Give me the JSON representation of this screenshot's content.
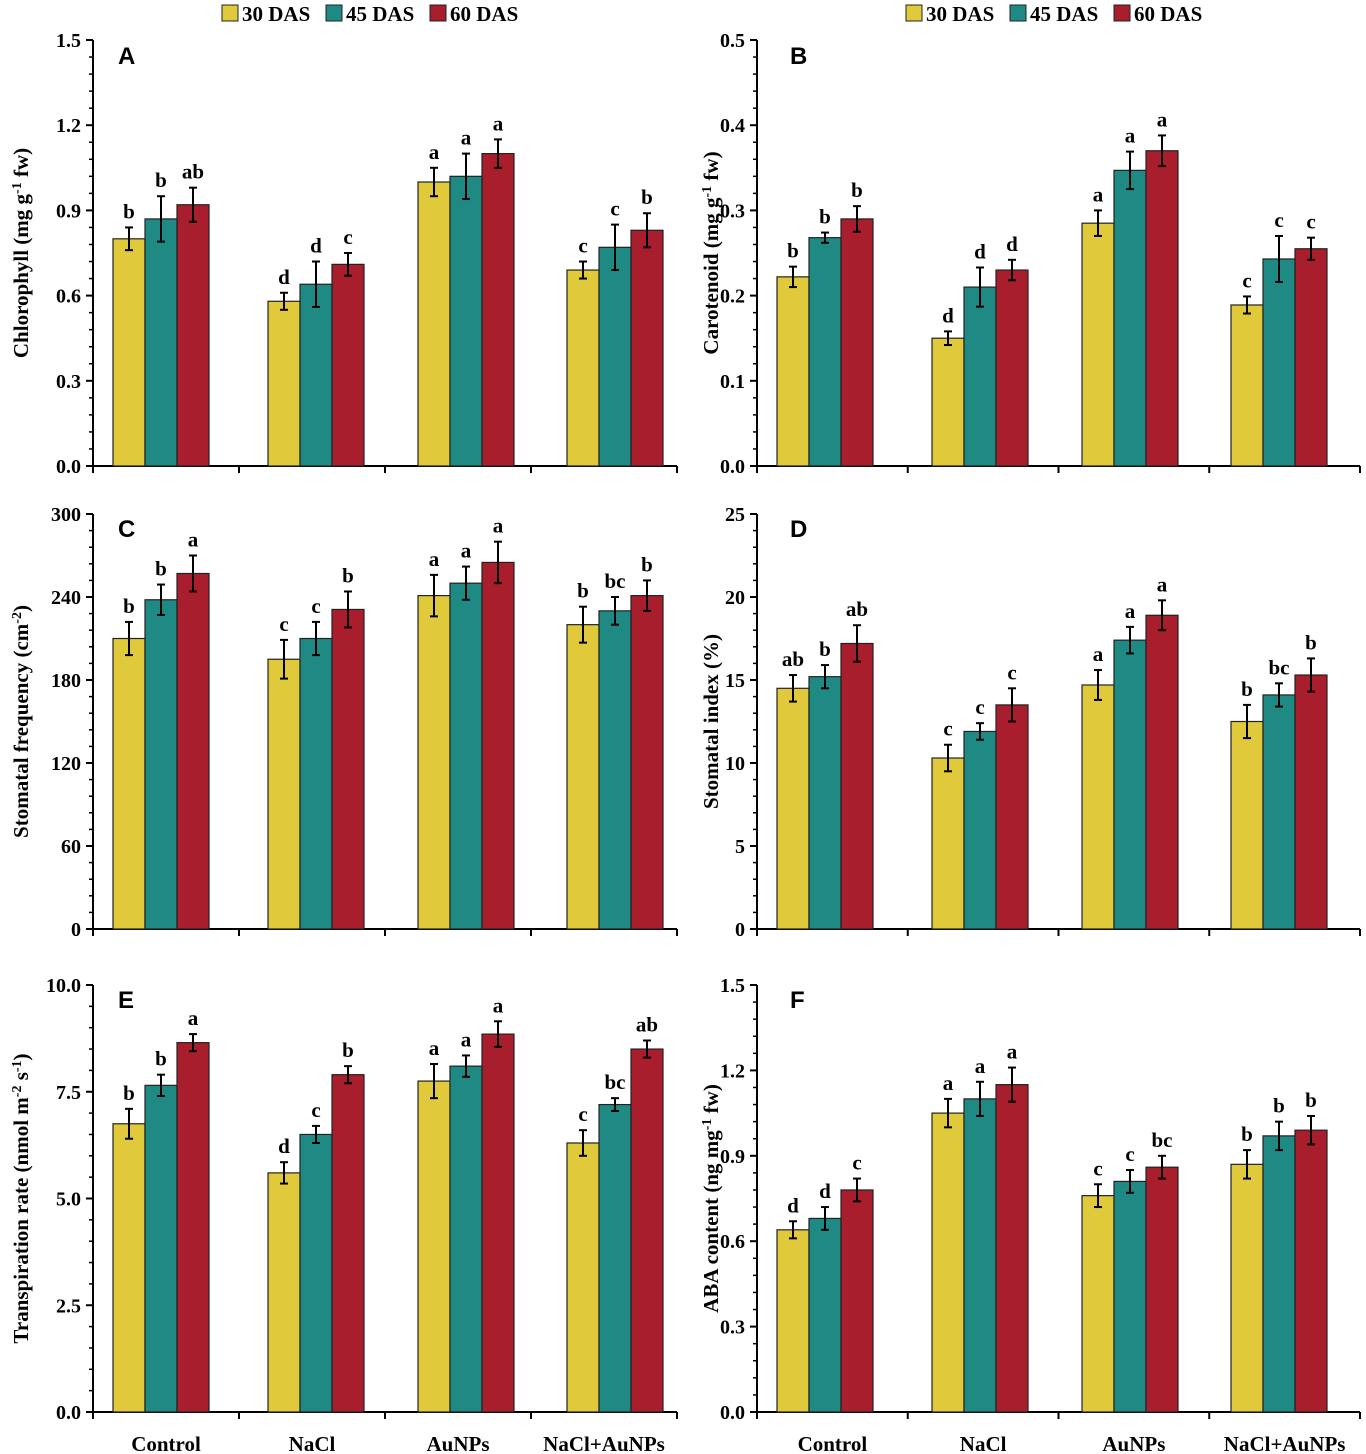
{
  "legend": [
    {
      "label": "30 DAS",
      "color": "#e0c93a"
    },
    {
      "label": "45 DAS",
      "color": "#1f8a84"
    },
    {
      "label": "60 DAS",
      "color": "#a81e2c"
    }
  ],
  "chart_data": [
    {
      "type": "bar",
      "panel": "A",
      "ylabel_parts": [
        "Chlorophyll (mg g",
        "-1",
        " fw)"
      ],
      "ylim": [
        0,
        1.5
      ],
      "yticks": [
        "0.0",
        "0.3",
        "0.6",
        "0.9",
        "1.2",
        "1.5"
      ],
      "categories": [
        "Control",
        "NaCl",
        "AuNPs",
        "NaCl+AuNPs"
      ],
      "series": [
        {
          "name": "30 DAS",
          "values": [
            0.8,
            0.58,
            1.0,
            0.69
          ],
          "errors": [
            0.04,
            0.03,
            0.05,
            0.03
          ],
          "letters": [
            "b",
            "d",
            "a",
            "c"
          ]
        },
        {
          "name": "45 DAS",
          "values": [
            0.87,
            0.64,
            1.02,
            0.77
          ],
          "errors": [
            0.08,
            0.08,
            0.08,
            0.08
          ],
          "letters": [
            "b",
            "d",
            "a",
            "c"
          ]
        },
        {
          "name": "60 DAS",
          "values": [
            0.92,
            0.71,
            1.1,
            0.83
          ],
          "errors": [
            0.06,
            0.04,
            0.05,
            0.06
          ],
          "letters": [
            "ab",
            "c",
            "a",
            "b"
          ]
        }
      ]
    },
    {
      "type": "bar",
      "panel": "B",
      "ylabel_parts": [
        "Carotenoid (mg g",
        "-1",
        " fw)"
      ],
      "ylim": [
        0,
        0.5
      ],
      "yticks": [
        "0.0",
        "0.1",
        "0.2",
        "0.3",
        "0.4",
        "0.5"
      ],
      "categories": [
        "Control",
        "NaCl",
        "AuNPs",
        "NaCl+AuNPs"
      ],
      "series": [
        {
          "name": "30 DAS",
          "values": [
            0.222,
            0.15,
            0.285,
            0.189
          ],
          "errors": [
            0.012,
            0.008,
            0.015,
            0.01
          ],
          "letters": [
            "b",
            "d",
            "a",
            "c"
          ]
        },
        {
          "name": "45 DAS",
          "values": [
            0.268,
            0.21,
            0.347,
            0.243
          ],
          "errors": [
            0.006,
            0.023,
            0.022,
            0.027
          ],
          "letters": [
            "b",
            "d",
            "a",
            "c"
          ]
        },
        {
          "name": "60 DAS",
          "values": [
            0.29,
            0.23,
            0.37,
            0.255
          ],
          "errors": [
            0.015,
            0.012,
            0.018,
            0.013
          ],
          "letters": [
            "b",
            "d",
            "a",
            "c"
          ]
        }
      ]
    },
    {
      "type": "bar",
      "panel": "C",
      "ylabel_parts": [
        "Stomatal frequency (cm",
        "-2",
        ")"
      ],
      "ylim": [
        0,
        300
      ],
      "yticks": [
        "0",
        "60",
        "120",
        "180",
        "240",
        "300"
      ],
      "categories": [
        "Control",
        "NaCl",
        "AuNPs",
        "NaCl+AuNPs"
      ],
      "series": [
        {
          "name": "30 DAS",
          "values": [
            210,
            195,
            241,
            220
          ],
          "errors": [
            12,
            14,
            15,
            13
          ],
          "letters": [
            "b",
            "c",
            "a",
            "b"
          ]
        },
        {
          "name": "45 DAS",
          "values": [
            238,
            210,
            250,
            230
          ],
          "errors": [
            11,
            12,
            12,
            10
          ],
          "letters": [
            "b",
            "c",
            "a",
            "bc"
          ]
        },
        {
          "name": "60 DAS",
          "values": [
            257,
            231,
            265,
            241
          ],
          "errors": [
            13,
            13,
            15,
            11
          ],
          "letters": [
            "a",
            "b",
            "a",
            "b"
          ]
        }
      ]
    },
    {
      "type": "bar",
      "panel": "D",
      "ylabel_parts": [
        "Stomatal index (%)"
      ],
      "ylim": [
        0,
        25
      ],
      "yticks": [
        "0",
        "5",
        "10",
        "15",
        "20",
        "25"
      ],
      "categories": [
        "Control",
        "NaCl",
        "AuNPs",
        "NaCl+AuNPs"
      ],
      "series": [
        {
          "name": "30 DAS",
          "values": [
            14.5,
            10.3,
            14.7,
            12.5
          ],
          "errors": [
            0.8,
            0.8,
            0.9,
            1.0
          ],
          "letters": [
            "ab",
            "c",
            "a",
            "b"
          ]
        },
        {
          "name": "45 DAS",
          "values": [
            15.2,
            11.9,
            17.4,
            14.1
          ],
          "errors": [
            0.7,
            0.5,
            0.8,
            0.7
          ],
          "letters": [
            "b",
            "c",
            "a",
            "bc"
          ]
        },
        {
          "name": "60 DAS",
          "values": [
            17.2,
            13.5,
            18.9,
            15.3
          ],
          "errors": [
            1.1,
            1.0,
            0.9,
            1.0
          ],
          "letters": [
            "ab",
            "c",
            "a",
            "b"
          ]
        }
      ]
    },
    {
      "type": "bar",
      "panel": "E",
      "ylabel_parts": [
        "Transpiration rate (nmol m",
        "-2",
        " s",
        "-1",
        ")"
      ],
      "ylim": [
        0,
        10
      ],
      "yticks": [
        "0.0",
        "2.5",
        "5.0",
        "7.5",
        "10.0"
      ],
      "categories": [
        "Control",
        "NaCl",
        "AuNPs",
        "NaCl+AuNPs"
      ],
      "series": [
        {
          "name": "30 DAS",
          "values": [
            6.75,
            5.6,
            7.75,
            6.3
          ],
          "errors": [
            0.35,
            0.25,
            0.4,
            0.3
          ],
          "letters": [
            "b",
            "d",
            "a",
            "c"
          ]
        },
        {
          "name": "45 DAS",
          "values": [
            7.65,
            6.5,
            8.1,
            7.2
          ],
          "errors": [
            0.25,
            0.2,
            0.25,
            0.15
          ],
          "letters": [
            "b",
            "c",
            "a",
            "bc"
          ]
        },
        {
          "name": "60 DAS",
          "values": [
            8.65,
            7.9,
            8.85,
            8.5
          ],
          "errors": [
            0.2,
            0.2,
            0.3,
            0.2
          ],
          "letters": [
            "a",
            "b",
            "a",
            "ab"
          ]
        }
      ]
    },
    {
      "type": "bar",
      "panel": "F",
      "ylabel_parts": [
        "ABA content (ng mg",
        "-1",
        " fw)"
      ],
      "ylim": [
        0,
        1.5
      ],
      "yticks": [
        "0.0",
        "0.3",
        "0.6",
        "0.9",
        "1.2",
        "1.5"
      ],
      "categories": [
        "Control",
        "NaCl",
        "AuNPs",
        "NaCl+AuNPs"
      ],
      "series": [
        {
          "name": "30 DAS",
          "values": [
            0.64,
            1.05,
            0.76,
            0.87
          ],
          "errors": [
            0.03,
            0.05,
            0.04,
            0.05
          ],
          "letters": [
            "d",
            "a",
            "c",
            "b"
          ]
        },
        {
          "name": "45 DAS",
          "values": [
            0.68,
            1.1,
            0.81,
            0.97
          ],
          "errors": [
            0.04,
            0.06,
            0.04,
            0.05
          ],
          "letters": [
            "d",
            "a",
            "c",
            "b"
          ]
        },
        {
          "name": "60 DAS",
          "values": [
            0.78,
            1.15,
            0.86,
            0.99
          ],
          "errors": [
            0.04,
            0.06,
            0.04,
            0.05
          ],
          "letters": [
            "c",
            "a",
            "bc",
            "b"
          ]
        }
      ]
    }
  ]
}
